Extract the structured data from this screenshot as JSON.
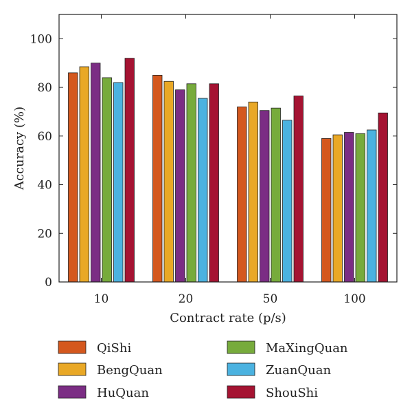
{
  "chart_data": {
    "type": "bar",
    "xlabel": "Contract rate (p/s)",
    "ylabel": "Accuracy (%)",
    "ylim": [
      0,
      110
    ],
    "yticks": [
      0,
      20,
      40,
      60,
      80,
      100
    ],
    "grid": false,
    "legend_position": "bottom",
    "categories": [
      "10",
      "20",
      "50",
      "100"
    ],
    "series": [
      {
        "name": "QiShi",
        "color": "#d4581e",
        "values": [
          86,
          85,
          72,
          59
        ]
      },
      {
        "name": "BengQuan",
        "color": "#e9a826",
        "values": [
          88.5,
          82.5,
          74,
          60.5
        ]
      },
      {
        "name": "HuQuan",
        "color": "#7b2d84",
        "values": [
          90,
          79,
          70.5,
          61.5
        ]
      },
      {
        "name": "MaXingQuan",
        "color": "#77ab3c",
        "values": [
          84,
          81.5,
          71.5,
          61
        ]
      },
      {
        "name": "ZuanQuan",
        "color": "#4bb2e0",
        "values": [
          82,
          75.5,
          66.5,
          62.5
        ]
      },
      {
        "name": "ShouShi",
        "color": "#a51332",
        "values": [
          92,
          81.5,
          76.5,
          69.5
        ]
      }
    ]
  }
}
